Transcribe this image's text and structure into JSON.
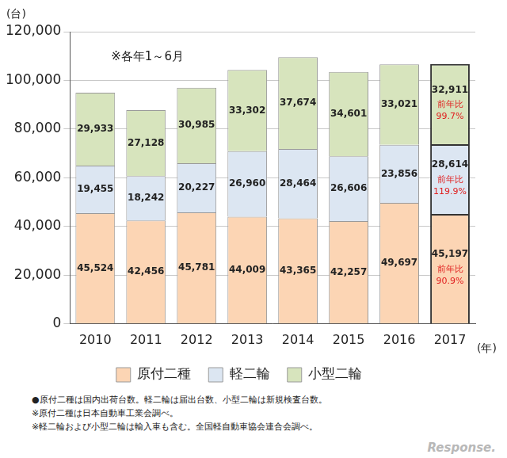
{
  "chart_data": {
    "type": "bar",
    "y_label": "(台)",
    "x_label": "(年)",
    "annotation": "※各年1～6月",
    "categories": [
      "2010",
      "2011",
      "2012",
      "2013",
      "2014",
      "2015",
      "2016",
      "2017"
    ],
    "stacked": true,
    "grid": true,
    "legend": "bottom",
    "data_labels": true,
    "ylim": [
      0,
      120000
    ],
    "yticks": [
      {
        "value": 0,
        "label": "0"
      },
      {
        "value": 20000,
        "label": "20,000"
      },
      {
        "value": 40000,
        "label": "40,000"
      },
      {
        "value": 60000,
        "label": "60,000"
      },
      {
        "value": 80000,
        "label": "80,000"
      },
      {
        "value": 100000,
        "label": "100,000"
      },
      {
        "value": 120000,
        "label": "120,000"
      }
    ],
    "series": [
      {
        "name": "原付二種",
        "color": "#fcd5b4",
        "values": [
          45524,
          42456,
          45781,
          44009,
          43365,
          42257,
          49697,
          45197
        ],
        "value_labels": [
          "45,524",
          "42,456",
          "45,781",
          "44,009",
          "43,365",
          "42,257",
          "49,697",
          "45,197"
        ]
      },
      {
        "name": "軽二輪",
        "color": "#dce6f2",
        "values": [
          19455,
          18242,
          20227,
          26960,
          28464,
          26606,
          23856,
          28614
        ],
        "value_labels": [
          "19,455",
          "18,242",
          "20,227",
          "26,960",
          "28,464",
          "26,606",
          "23,856",
          "28,614"
        ]
      },
      {
        "name": "小型二輪",
        "color": "#d7e4bd",
        "values": [
          29933,
          27128,
          30985,
          33302,
          37674,
          34601,
          33021,
          32911
        ],
        "value_labels": [
          "29,933",
          "27,128",
          "30,985",
          "33,302",
          "37,674",
          "34,601",
          "33,021",
          "32,911"
        ]
      }
    ],
    "yoy_labels": [
      {
        "category": "2017",
        "series": "小型二輪",
        "text": "前年比",
        "value": 99.7,
        "value_label": "99.7%",
        "color": "#e02020"
      },
      {
        "category": "2017",
        "series": "軽二輪",
        "text": "前年比",
        "value": 119.9,
        "value_label": "119.9%",
        "color": "#e02020"
      },
      {
        "category": "2017",
        "series": "原付二種",
        "text": "前年比",
        "value": 90.9,
        "value_label": "90.9%",
        "color": "#e02020"
      }
    ],
    "footnotes": [
      "●原付二種は国内出荷台数。軽二輪は届出台数、小型二輪は新規検査台数。",
      "※原付二種は日本自動車工業会調べ。",
      "※軽二輪および小型二輪は輸入車も含む。全国軽自動車協会連合会調べ。"
    ],
    "watermark": "Response."
  }
}
